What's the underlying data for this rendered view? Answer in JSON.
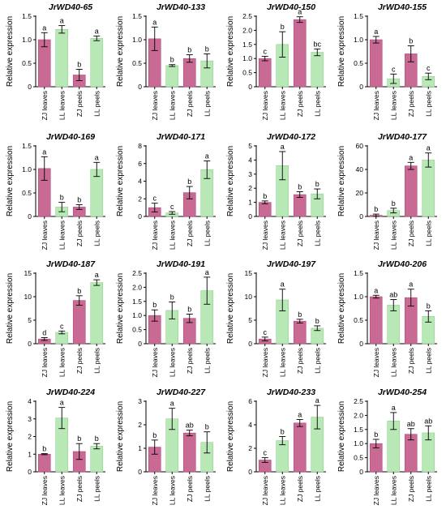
{
  "colors": {
    "pink_fill": "#c96a94",
    "pink_stroke": "#b04d7a",
    "green_fill": "#b9e8b7",
    "green_stroke": "#8fcf8c",
    "axis": "#000000"
  },
  "chart_data": [
    {
      "type": "bar",
      "title": "JrWD40-65",
      "ylabel": "Relative expression",
      "ylim": [
        0,
        1.5
      ],
      "yticks": [
        0,
        0.5,
        1.0,
        1.5
      ],
      "categories": [
        "ZJ leaves",
        "LL leaves",
        "ZJ peels",
        "LL peels"
      ],
      "values": [
        1.0,
        1.22,
        0.25,
        1.03
      ],
      "errors": [
        0.15,
        0.08,
        0.12,
        0.05
      ],
      "letters": [
        "a",
        "a",
        "b",
        "a"
      ]
    },
    {
      "type": "bar",
      "title": "JrWD40-133",
      "ylabel": "Relative expression",
      "ylim": [
        0,
        1.5
      ],
      "yticks": [
        0,
        0.5,
        1.0,
        1.5
      ],
      "categories": [
        "ZJ leaves",
        "LL leaves",
        "ZJ peels",
        "LL peels"
      ],
      "values": [
        1.02,
        0.45,
        0.6,
        0.55
      ],
      "errors": [
        0.25,
        0.02,
        0.08,
        0.15
      ],
      "letters": [
        "a",
        "b",
        "b",
        "b"
      ]
    },
    {
      "type": "bar",
      "title": "JrWD40-150",
      "ylabel": "Relative expression",
      "ylim": [
        0,
        2.5
      ],
      "yticks": [
        0,
        0.5,
        1.0,
        1.5,
        2.0,
        2.5
      ],
      "categories": [
        "ZJ leaves",
        "LL leaves",
        "ZJ peels",
        "LL peels"
      ],
      "values": [
        1.0,
        1.5,
        2.38,
        1.22
      ],
      "errors": [
        0.08,
        0.45,
        0.1,
        0.12
      ],
      "letters": [
        "c",
        "b",
        "a",
        "bc"
      ]
    },
    {
      "type": "bar",
      "title": "JrWD40-155",
      "ylabel": "Relative expression",
      "ylim": [
        0,
        1.5
      ],
      "yticks": [
        0,
        0.5,
        1.0,
        1.5
      ],
      "categories": [
        "ZJ leaves",
        "LL leaves",
        "ZJ peels",
        "LL peels"
      ],
      "values": [
        1.0,
        0.17,
        0.7,
        0.22
      ],
      "errors": [
        0.07,
        0.1,
        0.17,
        0.07
      ],
      "letters": [
        "a",
        "c",
        "b",
        "c"
      ]
    },
    {
      "type": "bar",
      "title": "JrWD40-169",
      "ylabel": "Relative expression",
      "ylim": [
        0,
        1.5
      ],
      "yticks": [
        0,
        0.5,
        1.0,
        1.5
      ],
      "categories": [
        "ZJ leaves",
        "LL leaves",
        "ZJ peels",
        "LL peels"
      ],
      "values": [
        1.02,
        0.2,
        0.2,
        1.0
      ],
      "errors": [
        0.25,
        0.1,
        0.05,
        0.15
      ],
      "letters": [
        "a",
        "b",
        "b",
        "a"
      ]
    },
    {
      "type": "bar",
      "title": "JrWD40-171",
      "ylabel": "Relative expression",
      "ylim": [
        0,
        8
      ],
      "yticks": [
        0,
        2,
        4,
        6,
        8
      ],
      "categories": [
        "ZJ leaves",
        "LL leaves",
        "ZJ peels",
        "LL peels"
      ],
      "values": [
        1.0,
        0.4,
        2.7,
        5.3
      ],
      "errors": [
        0.5,
        0.15,
        0.7,
        1.0
      ],
      "letters": [
        "c",
        "c",
        "b",
        "a"
      ]
    },
    {
      "type": "bar",
      "title": "JrWD40-172",
      "ylabel": "Relative expression",
      "ylim": [
        0,
        5
      ],
      "yticks": [
        0,
        1,
        2,
        3,
        4,
        5
      ],
      "categories": [
        "ZJ leaves",
        "LL leaves",
        "ZJ peels",
        "LL peels"
      ],
      "values": [
        1.0,
        3.6,
        1.55,
        1.6
      ],
      "errors": [
        0.1,
        1.0,
        0.2,
        0.35
      ],
      "letters": [
        "b",
        "a",
        "b",
        "b"
      ]
    },
    {
      "type": "bar",
      "title": "JrWD40-177",
      "ylabel": "Relative expression",
      "ylim": [
        0,
        60
      ],
      "yticks": [
        0,
        20,
        40,
        60
      ],
      "categories": [
        "ZJ leaves",
        "LL leaves",
        "ZJ peels",
        "LL peels"
      ],
      "values": [
        1.0,
        5.0,
        43.0,
        48.0
      ],
      "errors": [
        1.0,
        2.0,
        3.0,
        6.0
      ],
      "letters": [
        "b",
        "b",
        "a",
        "a"
      ]
    },
    {
      "type": "bar",
      "title": "JrWD40-187",
      "ylabel": "Relative expression",
      "ylim": [
        0,
        15
      ],
      "yticks": [
        0,
        5,
        10,
        15
      ],
      "categories": [
        "ZJ leaves",
        "LL leaves",
        "ZJ peels",
        "LL peels"
      ],
      "values": [
        1.0,
        2.4,
        9.2,
        13.0
      ],
      "errors": [
        0.3,
        0.3,
        1.0,
        0.6
      ],
      "letters": [
        "d",
        "c",
        "b",
        "a"
      ]
    },
    {
      "type": "bar",
      "title": "JrWD40-191",
      "ylabel": "Relative expression",
      "ylim": [
        0,
        2.5
      ],
      "yticks": [
        0,
        0.5,
        1.0,
        1.5,
        2.0,
        2.5
      ],
      "categories": [
        "ZJ leaves",
        "LL leaves",
        "ZJ peels",
        "LL peels"
      ],
      "values": [
        1.0,
        1.18,
        0.9,
        1.88
      ],
      "errors": [
        0.2,
        0.3,
        0.15,
        0.48
      ],
      "letters": [
        "b",
        "b",
        "b",
        "a"
      ]
    },
    {
      "type": "bar",
      "title": "JrWD40-197",
      "ylabel": "Relative expression",
      "ylim": [
        0,
        15
      ],
      "yticks": [
        0,
        5,
        10,
        15
      ],
      "categories": [
        "ZJ leaves",
        "LL leaves",
        "ZJ peels",
        "LL peels"
      ],
      "values": [
        1.0,
        9.3,
        4.8,
        3.3
      ],
      "errors": [
        0.4,
        2.3,
        0.4,
        0.5
      ],
      "letters": [
        "c",
        "a",
        "b",
        "b"
      ]
    },
    {
      "type": "bar",
      "title": "JrWD40-206",
      "ylabel": "Relative expression",
      "ylim": [
        0,
        1.5
      ],
      "yticks": [
        0,
        0.5,
        1.0,
        1.5
      ],
      "categories": [
        "ZJ leaves",
        "LL leaves",
        "ZJ peels",
        "LL peels"
      ],
      "values": [
        1.0,
        0.82,
        0.98,
        0.58
      ],
      "errors": [
        0.03,
        0.12,
        0.18,
        0.12
      ],
      "letters": [
        "a",
        "ab",
        "a",
        "b"
      ]
    },
    {
      "type": "bar",
      "title": "JrWD40-224",
      "ylabel": "Relative expression",
      "ylim": [
        0,
        4
      ],
      "yticks": [
        0,
        1,
        2,
        3,
        4
      ],
      "categories": [
        "ZJ leaves",
        "LL leaves",
        "ZJ peels",
        "LL peels"
      ],
      "values": [
        1.0,
        3.05,
        1.15,
        1.45
      ],
      "errors": [
        0.03,
        0.6,
        0.45,
        0.15
      ],
      "letters": [
        "b",
        "a",
        "b",
        "b"
      ]
    },
    {
      "type": "bar",
      "title": "JrWD40-227",
      "ylabel": "Relative expression",
      "ylim": [
        0,
        3
      ],
      "yticks": [
        0,
        1,
        2,
        3
      ],
      "categories": [
        "ZJ leaves",
        "LL leaves",
        "ZJ peels",
        "LL peels"
      ],
      "values": [
        1.05,
        2.25,
        1.65,
        1.25
      ],
      "errors": [
        0.3,
        0.45,
        0.12,
        0.45
      ],
      "letters": [
        "b",
        "a",
        "ab",
        "b"
      ]
    },
    {
      "type": "bar",
      "title": "JrWD40-233",
      "ylabel": "Relative expression",
      "ylim": [
        0,
        6
      ],
      "yticks": [
        0,
        2,
        4,
        6
      ],
      "categories": [
        "ZJ leaves",
        "LL leaves",
        "ZJ peels",
        "LL peels"
      ],
      "values": [
        1.0,
        2.65,
        4.15,
        4.65
      ],
      "errors": [
        0.2,
        0.35,
        0.3,
        1.0
      ],
      "letters": [
        "c",
        "b",
        "a",
        "a"
      ]
    },
    {
      "type": "bar",
      "title": "JrWD40-254",
      "ylabel": "Relative expression",
      "ylim": [
        0,
        2.5
      ],
      "yticks": [
        0,
        0.5,
        1.0,
        1.5,
        2.0,
        2.5
      ],
      "categories": [
        "ZJ leaves",
        "LL leaves",
        "ZJ peels",
        "LL peels"
      ],
      "values": [
        1.0,
        1.8,
        1.33,
        1.38
      ],
      "errors": [
        0.15,
        0.3,
        0.2,
        0.25
      ],
      "letters": [
        "b",
        "a",
        "ab",
        "ab"
      ]
    }
  ]
}
